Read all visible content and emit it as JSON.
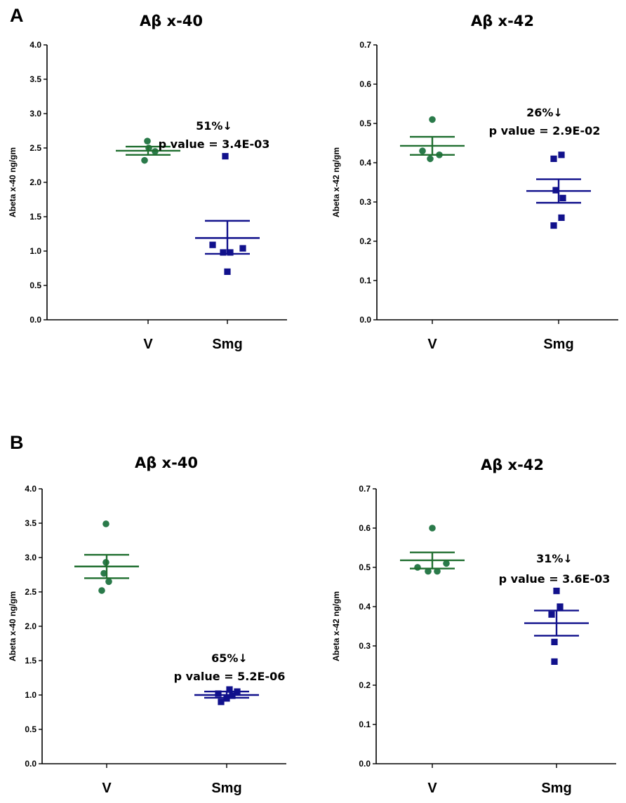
{
  "figure": {
    "panels": [
      {
        "label": "A"
      },
      {
        "label": "B"
      }
    ]
  },
  "colors": {
    "v": "#1f6e2f",
    "v_point": "#2a7a4a",
    "smg": "#11118c",
    "axis": "#000000"
  },
  "chart_data": [
    {
      "panel": "A",
      "type": "scatter",
      "title": "Aβ x-40",
      "xlabel": "",
      "ylabel": "Abeta x-40 ng/gm",
      "ylim": [
        0,
        4.0
      ],
      "yticks": [
        "0.0",
        "0.5",
        "1.0",
        "1.5",
        "2.0",
        "2.5",
        "3.0",
        "3.5",
        "4.0"
      ],
      "categories": [
        "V",
        "Smg"
      ],
      "series": [
        {
          "name": "V",
          "marker": "circle",
          "values": [
            2.6,
            2.45,
            2.32,
            2.5
          ],
          "mean": 2.46,
          "sem_low": 2.4,
          "sem_high": 2.52
        },
        {
          "name": "Smg",
          "marker": "square",
          "values": [
            2.38,
            1.09,
            0.98,
            0.98,
            1.04,
            0.7
          ],
          "mean": 1.19,
          "sem_low": 0.96,
          "sem_high": 1.44
        }
      ],
      "annotation": {
        "line1": "51%↓",
        "line2": "p value = 3.4E-03"
      }
    },
    {
      "panel": "A",
      "type": "scatter",
      "title": "Aβ x-42",
      "xlabel": "",
      "ylabel": "Abeta x-42 ng/gm",
      "ylim": [
        0,
        0.7
      ],
      "yticks": [
        "0.0",
        "0.1",
        "0.2",
        "0.3",
        "0.4",
        "0.5",
        "0.6",
        "0.7"
      ],
      "categories": [
        "V",
        "Smg"
      ],
      "series": [
        {
          "name": "V",
          "marker": "circle",
          "values": [
            0.51,
            0.43,
            0.41,
            0.42
          ],
          "mean": 0.443,
          "sem_low": 0.42,
          "sem_high": 0.466
        },
        {
          "name": "Smg",
          "marker": "square",
          "values": [
            0.41,
            0.42,
            0.33,
            0.31,
            0.26,
            0.24
          ],
          "mean": 0.328,
          "sem_low": 0.298,
          "sem_high": 0.358
        }
      ],
      "annotation": {
        "line1": "26%↓",
        "line2": "p value = 2.9E-02"
      }
    },
    {
      "panel": "B",
      "type": "scatter",
      "title": "Aβ x-40",
      "xlabel": "",
      "ylabel": "Abeta x-40 ng/gm",
      "ylim": [
        0,
        4.0
      ],
      "yticks": [
        "0.0",
        "0.5",
        "1.0",
        "1.5",
        "2.0",
        "2.5",
        "3.0",
        "3.5",
        "4.0"
      ],
      "categories": [
        "V",
        "Smg"
      ],
      "series": [
        {
          "name": "V",
          "marker": "circle",
          "values": [
            3.49,
            2.93,
            2.77,
            2.65,
            2.52
          ],
          "mean": 2.87,
          "sem_low": 2.7,
          "sem_high": 3.04
        },
        {
          "name": "Smg",
          "marker": "square",
          "values": [
            1.08,
            1.05,
            1.02,
            0.99,
            0.95,
            0.9
          ],
          "mean": 1.0,
          "sem_low": 0.96,
          "sem_high": 1.05
        }
      ],
      "annotation": {
        "line1": "65%↓",
        "line2": "p value = 5.2E-06"
      }
    },
    {
      "panel": "B",
      "type": "scatter",
      "title": "Aβ x-42",
      "xlabel": "",
      "ylabel": "Abeta x-42 ng/gm",
      "ylim": [
        0,
        0.7
      ],
      "yticks": [
        "0.0",
        "0.1",
        "0.2",
        "0.3",
        "0.4",
        "0.5",
        "0.6",
        "0.7"
      ],
      "categories": [
        "V",
        "Smg"
      ],
      "series": [
        {
          "name": "V",
          "marker": "circle",
          "values": [
            0.6,
            0.5,
            0.49,
            0.49,
            0.51
          ],
          "mean": 0.518,
          "sem_low": 0.497,
          "sem_high": 0.538
        },
        {
          "name": "Smg",
          "marker": "square",
          "values": [
            0.44,
            0.4,
            0.38,
            0.31,
            0.26
          ],
          "mean": 0.358,
          "sem_low": 0.326,
          "sem_high": 0.39
        }
      ],
      "annotation": {
        "line1": "31%↓",
        "line2": "p value = 3.6E-03"
      }
    }
  ]
}
